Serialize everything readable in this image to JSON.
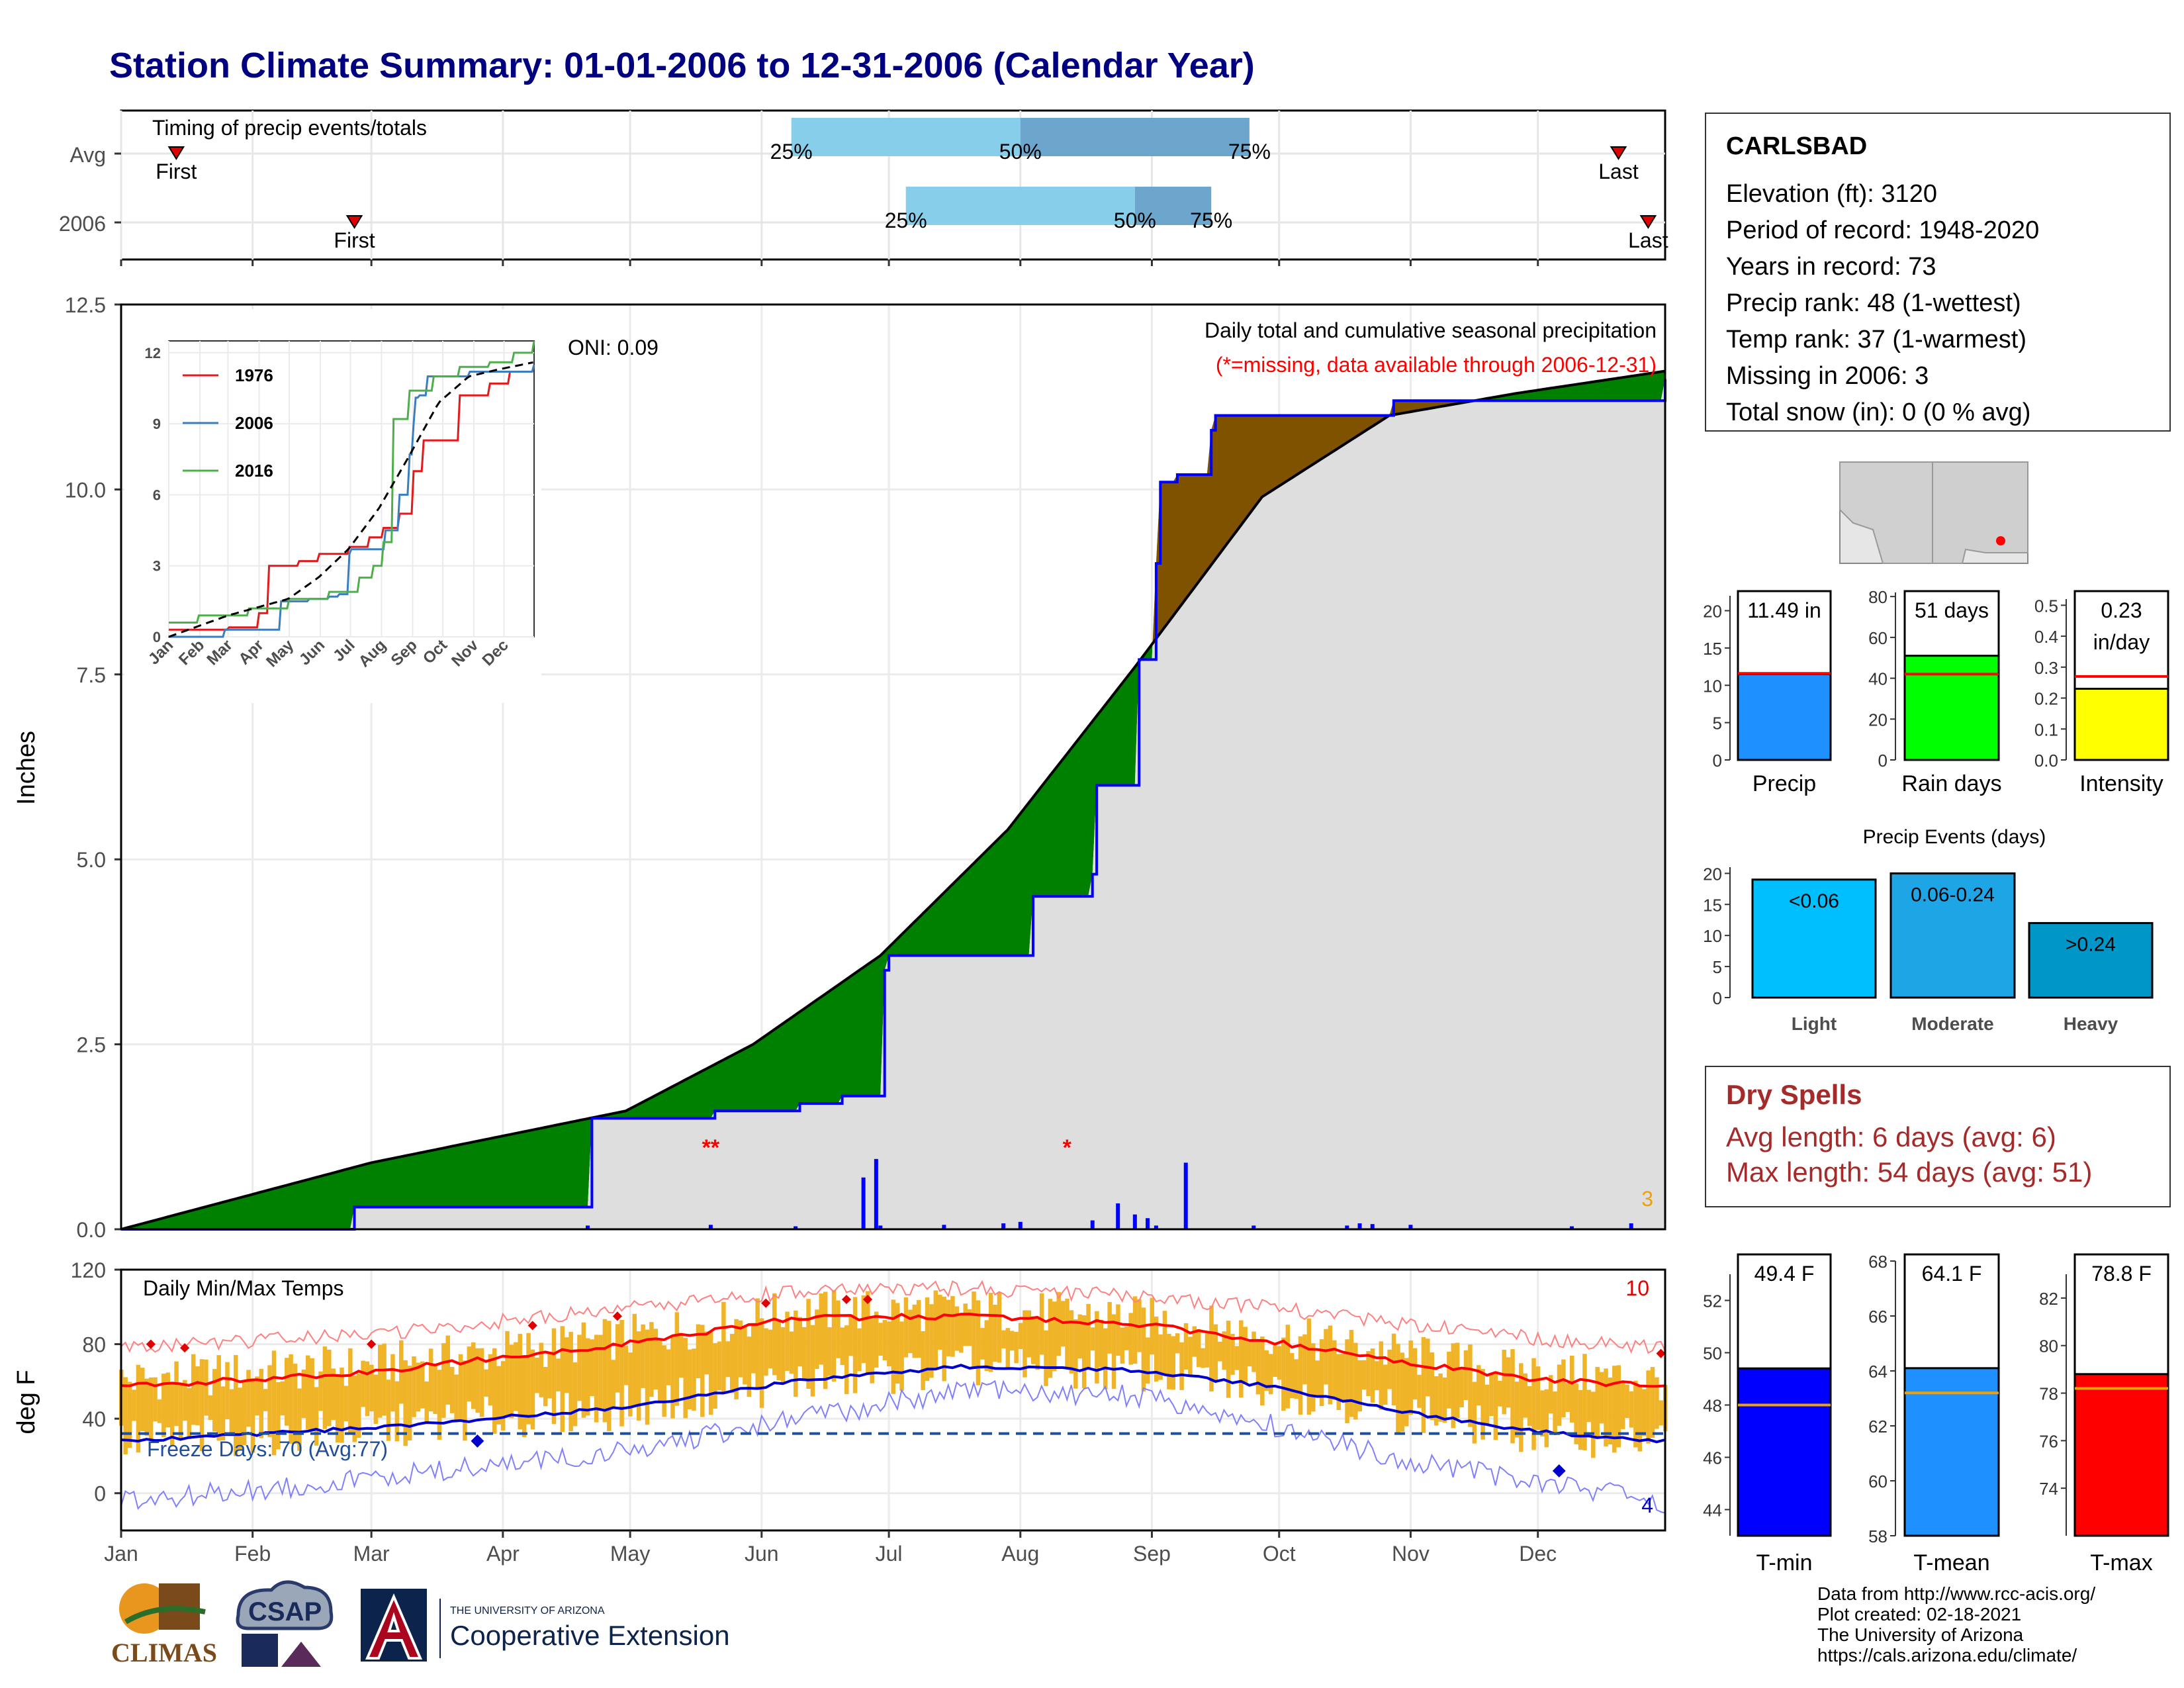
{
  "title": "Station Climate Summary: 01-01-2006 to 12-31-2006 (Calendar Year)",
  "timing": {
    "title": "Timing of precip events/totals",
    "rows": [
      {
        "label": "Avg",
        "first_label": "First",
        "last_label": "Last",
        "first_day": 14,
        "last_day": 354,
        "p25": 159,
        "p50": 213,
        "p75": 267,
        "p25_label": "25%",
        "p50_label": "50%",
        "p75_label": "75%"
      },
      {
        "label": "2006",
        "first_label": "First",
        "last_label": "Last",
        "first_day": 56,
        "last_day": 361,
        "p25": 186,
        "p50": 240,
        "p75": 258,
        "p25_label": "25%",
        "p50_label": "50%",
        "p75_label": "75%"
      }
    ]
  },
  "precip_panel": {
    "ylabel": "Inches",
    "oni_label": "ONI: 0.09",
    "title": "Daily total and cumulative seasonal precipitation",
    "subtitle": "(*=missing, data available through 2006-12-31)",
    "missing_marks": [
      {
        "day": 140,
        "text": "**"
      },
      {
        "day": 224,
        "text": "*"
      }
    ],
    "missing_count": "3",
    "ylim": [
      0,
      12.5
    ],
    "yticks": [
      "0.0",
      "2.5",
      "5.0",
      "7.5",
      "10.0",
      "12.5"
    ]
  },
  "inset": {
    "yticks": [
      "0",
      "3",
      "6",
      "9",
      "12"
    ],
    "xticks": [
      "Jan",
      "Feb",
      "Mar",
      "Apr",
      "May",
      "Jun",
      "Jul",
      "Aug",
      "Sep",
      "Oct",
      "Nov",
      "Dec"
    ],
    "legend": [
      "1976",
      "2006",
      "2016"
    ]
  },
  "temp_panel": {
    "ylabel": "deg F",
    "title": "Daily Min/Max Temps",
    "freeze_label": "Freeze Days: 70 (Avg:77)",
    "max_count": "10",
    "min_count": "4",
    "ylim": [
      -20,
      120
    ],
    "yticks": [
      "0",
      "40",
      "80",
      "120"
    ],
    "freeze_line": 32
  },
  "months": [
    "Jan",
    "Feb",
    "Mar",
    "Apr",
    "May",
    "Jun",
    "Jul",
    "Aug",
    "Sep",
    "Oct",
    "Nov",
    "Dec"
  ],
  "station": {
    "name": "CARLSBAD",
    "elevation": "Elevation (ft): 3120",
    "period": "Period of record: 1948-2020",
    "years": "Years in record: 73",
    "precip_rank": "Precip rank: 48 (1-wettest)",
    "temp_rank": "Temp rank: 37 (1-warmest)",
    "missing": "Missing in 2006: 3",
    "snow": "Total snow (in): 0 (0 % avg)"
  },
  "dry_spells": {
    "title": "Dry Spells",
    "avg": "Avg length: 6 days (avg: 6)",
    "max": "Max length: 54 days (avg: 51)"
  },
  "credits": [
    "Data from http://www.rcc-acis.org/",
    "Plot created: 02-18-2021",
    "The University of Arizona",
    "https://cals.arizona.edu/climate/"
  ],
  "logos": {
    "climas": "CLIMAS",
    "csap": "CSAP",
    "uofa_small": "THE UNIVERSITY OF ARIZONA",
    "uofa_big": "Cooperative Extension"
  },
  "colors": {
    "accent": "#000080",
    "brown": "#7f5200",
    "green": "#008000",
    "blue": "#0000ff",
    "orange": "#f0b428",
    "red": "#ff0000",
    "lightblue": "#87ceeb",
    "midblue": "#6ca6cd"
  },
  "chart_data": [
    {
      "type": "area",
      "title": "Daily total and cumulative seasonal precipitation",
      "ylabel": "Inches",
      "ylim": [
        0,
        12.5
      ],
      "series": [
        {
          "name": "cumulative 2006",
          "x": [
            1,
            55,
            56,
            111,
            112,
            140,
            141,
            160,
            161,
            170,
            171,
            180,
            181,
            182,
            215,
            216,
            230,
            231,
            240,
            241,
            245,
            246,
            249,
            250,
            258,
            259,
            300,
            301,
            365
          ],
          "values": [
            0.0,
            0.0,
            0.3,
            0.3,
            1.5,
            1.5,
            1.6,
            1.6,
            1.7,
            1.7,
            1.8,
            1.8,
            3.5,
            3.7,
            3.7,
            4.5,
            4.8,
            6.0,
            6.0,
            7.7,
            9.0,
            10.1,
            10.1,
            10.2,
            10.8,
            11.0,
            11.0,
            11.2,
            11.49
          ]
        },
        {
          "name": "average",
          "x": [
            1,
            60,
            120,
            150,
            180,
            210,
            240,
            270,
            300,
            330,
            365
          ],
          "values": [
            0.0,
            0.9,
            1.6,
            2.5,
            3.7,
            5.4,
            7.6,
            9.9,
            11.0,
            11.3,
            11.6
          ]
        }
      ],
      "daily_bars": {
        "x": [
          111,
          140,
          160,
          176,
          179,
          180,
          195,
          209,
          213,
          230,
          236,
          240,
          243,
          245,
          252,
          268,
          290,
          293,
          296,
          305,
          343,
          357
        ],
        "values": [
          0.05,
          0.06,
          0.04,
          0.7,
          0.95,
          0.05,
          0.06,
          0.08,
          0.1,
          0.12,
          0.35,
          0.2,
          0.15,
          0.05,
          0.9,
          0.05,
          0.05,
          0.08,
          0.07,
          0.06,
          0.04,
          0.08
        ]
      }
    },
    {
      "type": "line",
      "title": "Daily Min/Max Temps",
      "ylabel": "deg F",
      "ylim": [
        -20,
        120
      ],
      "series": [
        {
          "name": "avg max",
          "x": [
            1,
            60,
            120,
            160,
            200,
            240,
            270,
            300,
            330,
            365
          ],
          "values": [
            57,
            65,
            80,
            94,
            95,
            91,
            82,
            72,
            62,
            57
          ]
        },
        {
          "name": "avg min",
          "x": [
            1,
            60,
            120,
            160,
            200,
            240,
            270,
            300,
            330,
            365
          ],
          "values": [
            28,
            35,
            46,
            60,
            68,
            66,
            58,
            45,
            34,
            28
          ]
        },
        {
          "name": "record max",
          "x": [
            1,
            60,
            120,
            160,
            200,
            240,
            270,
            300,
            330,
            365
          ],
          "values": [
            78,
            85,
            99,
            108,
            110,
            106,
            100,
            92,
            84,
            78
          ]
        },
        {
          "name": "record min",
          "x": [
            1,
            60,
            120,
            160,
            200,
            240,
            270,
            300,
            330,
            365
          ],
          "values": [
            -5,
            8,
            22,
            40,
            55,
            52,
            38,
            20,
            8,
            -5
          ]
        }
      ]
    },
    {
      "type": "bar",
      "categories": [
        "Precip"
      ],
      "values": [
        11.49
      ],
      "avg": 11.6,
      "ylim": [
        0,
        22
      ],
      "yticks": [
        "0",
        "5",
        "10",
        "15",
        "20"
      ],
      "label": "11.49 in",
      "color": "#1e90ff"
    },
    {
      "type": "bar",
      "categories": [
        "Rain days"
      ],
      "values": [
        51
      ],
      "avg": 42,
      "ylim": [
        0,
        82
      ],
      "yticks": [
        "0",
        "20",
        "40",
        "60",
        "80"
      ],
      "label": "51 days",
      "color": "#00ff00"
    },
    {
      "type": "bar",
      "categories": [
        "Intensity"
      ],
      "values": [
        0.23
      ],
      "avg": 0.27,
      "ylim": [
        0,
        0.52
      ],
      "yticks": [
        "0.0",
        "0.1",
        "0.2",
        "0.3",
        "0.4",
        "0.5"
      ],
      "label": "0.23",
      "label2": "in/day",
      "color": "#ffff00"
    },
    {
      "type": "bar",
      "title": "Precip Events (days)",
      "categories": [
        "Light",
        "Moderate",
        "Heavy"
      ],
      "values": [
        19,
        20,
        12
      ],
      "labels": [
        "<0.06",
        "0.06-0.24",
        ">0.24"
      ],
      "ylim": [
        0,
        21
      ],
      "yticks": [
        "0",
        "5",
        "10",
        "15",
        "20"
      ]
    },
    {
      "type": "bar",
      "categories": [
        "T-min"
      ],
      "values": [
        49.4
      ],
      "avg": 48,
      "ylim": [
        43,
        53
      ],
      "yticks": [
        "44",
        "46",
        "48",
        "50",
        "52"
      ],
      "label": "49.4 F",
      "color": "#0000ff"
    },
    {
      "type": "bar",
      "categories": [
        "T-mean"
      ],
      "values": [
        64.1
      ],
      "avg": 63.2,
      "ylim": [
        58,
        68
      ],
      "yticks": [
        "58",
        "60",
        "62",
        "64",
        "66",
        "68"
      ],
      "label": "64.1 F",
      "color": "#1e90ff"
    },
    {
      "type": "bar",
      "categories": [
        "T-max"
      ],
      "values": [
        78.8
      ],
      "avg": 78.2,
      "ylim": [
        72,
        83
      ],
      "yticks": [
        "74",
        "76",
        "78",
        "80",
        "82"
      ],
      "label": "78.8 F",
      "color": "#ff0000"
    }
  ]
}
